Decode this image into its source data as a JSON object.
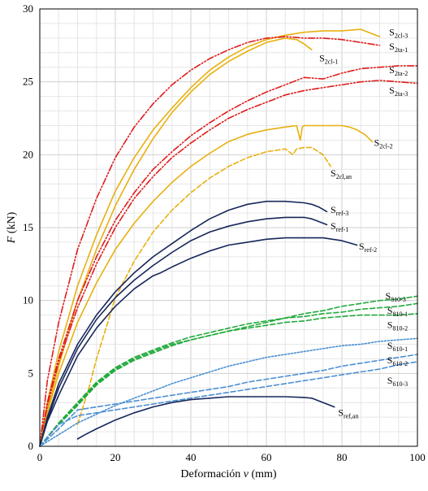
{
  "chart_data": {
    "type": "line",
    "title": "",
    "xlabel": "Deformación v (mm)",
    "xlabel_parts": [
      "Deformación ",
      "v",
      " (mm)"
    ],
    "ylabel": "F (kN)",
    "ylabel_parts": [
      "F",
      " (kN)"
    ],
    "xlim": [
      0,
      100
    ],
    "ylim": [
      0,
      30
    ],
    "xticks": [
      0,
      20,
      40,
      60,
      80,
      100
    ],
    "yticks": [
      0,
      5,
      10,
      15,
      20,
      25,
      30
    ],
    "grid": true,
    "legend": "inline labels at curve ends",
    "colors": {
      "orange": "#E8B00F",
      "red": "#E01B1B",
      "navy": "#17275A",
      "green": "#22AA3C",
      "blue": "#4C8FD2"
    },
    "series": [
      {
        "name": "S2cl-3",
        "label_main": "S",
        "label_sub": "2cl-3",
        "color": "#E8B00F",
        "dash": "solid",
        "label_at": [
          92.5,
          28.2
        ],
        "x": [
          0,
          2,
          5,
          10,
          15,
          20,
          25,
          30,
          35,
          40,
          45,
          50,
          55,
          60,
          65,
          70,
          75,
          80,
          85,
          90
        ],
        "y": [
          0,
          3,
          6.5,
          11,
          14.5,
          17.5,
          19.8,
          21.7,
          23.2,
          24.6,
          25.8,
          26.7,
          27.4,
          27.9,
          28.2,
          28.4,
          28.5,
          28.5,
          28.6,
          28.1
        ]
      },
      {
        "name": "S2cl-1",
        "label_main": "S",
        "label_sub": "2cl-1",
        "color": "#E8B00F",
        "dash": "solid",
        "label_at": [
          74,
          26.4
        ],
        "x": [
          0,
          2,
          5,
          10,
          15,
          20,
          25,
          30,
          35,
          40,
          45,
          50,
          55,
          60,
          65,
          68,
          70,
          72
        ],
        "y": [
          0,
          2.5,
          5.5,
          10,
          13.5,
          16.5,
          19,
          21.1,
          22.9,
          24.3,
          25.5,
          26.4,
          27.1,
          27.7,
          28,
          27.9,
          27.6,
          27.2
        ]
      },
      {
        "name": "S2ta-1",
        "label_main": "S",
        "label_sub": "2ta-1",
        "color": "#E01B1B",
        "dash": "dashdotdot",
        "label_at": [
          92.5,
          27.2
        ],
        "x": [
          0,
          2,
          5,
          10,
          15,
          20,
          25,
          30,
          35,
          40,
          45,
          50,
          55,
          60,
          65,
          70,
          75,
          80,
          85,
          90
        ],
        "y": [
          0,
          4.5,
          8.5,
          13.5,
          17,
          19.8,
          21.9,
          23.5,
          24.8,
          25.8,
          26.6,
          27.2,
          27.7,
          28,
          28.1,
          28,
          28,
          27.9,
          27.7,
          27.5
        ]
      },
      {
        "name": "S2ta-2",
        "label_main": "S",
        "label_sub": "2ta-2",
        "color": "#E01B1B",
        "dash": "dashdotdot",
        "label_at": [
          92.5,
          25.6
        ],
        "x": [
          0,
          2,
          5,
          10,
          15,
          20,
          25,
          30,
          35,
          40,
          45,
          50,
          55,
          60,
          65,
          70,
          75,
          80,
          85,
          90,
          95,
          100
        ],
        "y": [
          0,
          3,
          6,
          10,
          13,
          15.5,
          17.4,
          19,
          20.2,
          21.3,
          22.2,
          23,
          23.7,
          24.3,
          24.8,
          25.3,
          25.2,
          25.6,
          25.9,
          26,
          26.1,
          26.1
        ]
      },
      {
        "name": "S2ta-3",
        "label_main": "S",
        "label_sub": "2ta-3",
        "color": "#E01B1B",
        "dash": "dashdotdot",
        "label_at": [
          92.5,
          24.2
        ],
        "x": [
          0,
          2,
          5,
          10,
          15,
          20,
          25,
          30,
          35,
          40,
          45,
          50,
          55,
          60,
          65,
          70,
          75,
          80,
          85,
          90,
          95,
          100
        ],
        "y": [
          0,
          2.8,
          5.8,
          9.5,
          12.5,
          15,
          17,
          18.5,
          19.8,
          20.8,
          21.7,
          22.5,
          23.1,
          23.6,
          24.1,
          24.4,
          24.6,
          24.8,
          25,
          25.1,
          25,
          24.9
        ]
      },
      {
        "name": "S2cl-2",
        "label_main": "S",
        "label_sub": "2cl-2",
        "color": "#E8B00F",
        "dash": "solid",
        "label_at": [
          88.5,
          20.6
        ],
        "x": [
          0,
          2,
          5,
          10,
          15,
          20,
          25,
          30,
          35,
          40,
          45,
          50,
          55,
          60,
          65,
          68,
          69,
          69.5,
          70,
          75,
          80,
          82,
          84,
          86,
          88
        ],
        "y": [
          0,
          2.3,
          5,
          8.5,
          11.2,
          13.5,
          15.3,
          16.8,
          18.1,
          19.2,
          20.1,
          20.9,
          21.4,
          21.7,
          21.9,
          22,
          21,
          21.9,
          22,
          22,
          22,
          21.9,
          21.7,
          21.4,
          20.9
        ]
      },
      {
        "name": "S2cl,an",
        "label_main": "S",
        "label_sub": "2cl,an",
        "color": "#E8B00F",
        "dash": "dash",
        "label_at": [
          77,
          18.5
        ],
        "x": [
          10,
          13,
          15,
          18,
          20,
          25,
          30,
          35,
          40,
          45,
          50,
          55,
          60,
          65,
          67,
          68,
          70,
          72,
          75,
          77
        ],
        "y": [
          1.5,
          4,
          6,
          8.5,
          10.2,
          12.7,
          14.7,
          16.2,
          17.4,
          18.4,
          19.2,
          19.8,
          20.2,
          20.4,
          20,
          20.4,
          20.5,
          20.5,
          20,
          19.2
        ]
      },
      {
        "name": "Sref-3",
        "label_main": "S",
        "label_sub": "ref-3",
        "color": "#17275A",
        "dash": "solid",
        "label_at": [
          77,
          16
        ],
        "x": [
          0,
          2,
          5,
          10,
          15,
          20,
          25,
          30,
          35,
          40,
          45,
          50,
          55,
          60,
          65,
          70,
          72,
          74,
          76
        ],
        "y": [
          0,
          2,
          4.3,
          7,
          9,
          10.6,
          11.9,
          13,
          13.9,
          14.8,
          15.6,
          16.2,
          16.6,
          16.8,
          16.8,
          16.7,
          16.6,
          16.4,
          16.1
        ]
      },
      {
        "name": "Sref-1",
        "label_main": "S",
        "label_sub": "ref-1",
        "color": "#17275A",
        "dash": "solid",
        "label_at": [
          77,
          14.9
        ],
        "x": [
          0,
          2,
          5,
          10,
          15,
          20,
          25,
          30,
          35,
          40,
          45,
          50,
          55,
          60,
          65,
          70,
          72,
          74,
          76
        ],
        "y": [
          0,
          1.8,
          4,
          6.7,
          8.7,
          10.2,
          11.4,
          12.4,
          13.3,
          14.1,
          14.7,
          15.1,
          15.4,
          15.6,
          15.7,
          15.7,
          15.6,
          15.4,
          15.2
        ]
      },
      {
        "name": "Sref-2",
        "label_main": "S",
        "label_sub": "ref-2",
        "color": "#17275A",
        "dash": "solid",
        "label_at": [
          84.5,
          13.5
        ],
        "x": [
          0,
          2,
          5,
          10,
          15,
          20,
          25,
          30,
          32,
          35,
          40,
          45,
          50,
          55,
          60,
          65,
          70,
          75,
          80,
          84
        ],
        "y": [
          0,
          1.7,
          3.5,
          6.2,
          8.1,
          9.6,
          10.8,
          11.7,
          11.9,
          12.3,
          12.9,
          13.4,
          13.8,
          14,
          14.2,
          14.3,
          14.3,
          14.3,
          14.1,
          13.8
        ]
      },
      {
        "name": "S810-3",
        "label_main": "S",
        "label_sub": "810-3",
        "color": "#22AA3C",
        "dash": "dash",
        "label_at": [
          91.5,
          10.1
        ],
        "x": [
          0,
          5,
          10,
          15,
          20,
          25,
          30,
          35,
          40,
          45,
          50,
          55,
          60,
          65,
          70,
          75,
          80,
          85,
          90,
          95,
          100
        ],
        "y": [
          0,
          1.5,
          2.8,
          4.2,
          5.2,
          5.9,
          6.4,
          6.9,
          7.3,
          7.6,
          7.9,
          8.2,
          8.5,
          8.8,
          9.1,
          9.3,
          9.6,
          9.8,
          10,
          10.1,
          10.3
        ]
      },
      {
        "name": "S810-1",
        "label_main": "S",
        "label_sub": "810-1",
        "color": "#22AA3C",
        "dash": "dash",
        "label_at": [
          92,
          9.1
        ],
        "x": [
          0,
          5,
          10,
          15,
          20,
          25,
          30,
          35,
          40,
          45,
          50,
          55,
          60,
          65,
          70,
          75,
          80,
          85,
          90,
          95,
          100
        ],
        "y": [
          0,
          1.6,
          3,
          4.4,
          5.4,
          6.1,
          6.6,
          7.1,
          7.5,
          7.8,
          8.1,
          8.4,
          8.6,
          8.8,
          8.9,
          9.1,
          9.2,
          9.4,
          9.5,
          9.6,
          9.8
        ]
      },
      {
        "name": "S810-2",
        "label_main": "S",
        "label_sub": "810-2",
        "color": "#22AA3C",
        "dash": "dash",
        "label_at": [
          92,
          8.1
        ],
        "x": [
          0,
          5,
          10,
          15,
          20,
          25,
          30,
          35,
          40,
          45,
          50,
          55,
          60,
          65,
          70,
          75,
          80,
          85,
          90,
          95,
          100
        ],
        "y": [
          0,
          1.5,
          2.9,
          4.3,
          5.3,
          6,
          6.5,
          7,
          7.3,
          7.6,
          7.9,
          8.1,
          8.3,
          8.5,
          8.6,
          8.8,
          8.9,
          9,
          9,
          9,
          9.1
        ]
      },
      {
        "name": "S610-1",
        "label_main": "S",
        "label_sub": "610-1",
        "color": "#4C8FD2",
        "dash": "dot",
        "label_at": [
          92,
          6.7
        ],
        "x": [
          0,
          5,
          10,
          15,
          20,
          25,
          30,
          35,
          40,
          45,
          50,
          55,
          60,
          65,
          70,
          75,
          80,
          85,
          90,
          95,
          100
        ],
        "y": [
          0,
          0.8,
          1.6,
          2.2,
          2.8,
          3.3,
          3.8,
          4.3,
          4.7,
          5.1,
          5.5,
          5.8,
          6.1,
          6.3,
          6.5,
          6.7,
          6.9,
          7,
          7.2,
          7.3,
          7.4
        ]
      },
      {
        "name": "S610-2",
        "label_main": "S",
        "label_sub": "610-2",
        "color": "#4C8FD2",
        "dash": "dash",
        "label_at": [
          92,
          5.7
        ],
        "x": [
          0,
          5,
          10,
          15,
          20,
          25,
          30,
          35,
          40,
          45,
          50,
          55,
          60,
          65,
          70,
          75,
          80,
          85,
          90,
          95,
          100
        ],
        "y": [
          0,
          1.2,
          2.5,
          2.7,
          2.9,
          3.1,
          3.3,
          3.5,
          3.7,
          3.9,
          4.1,
          4.4,
          4.6,
          4.8,
          5,
          5.2,
          5.5,
          5.7,
          5.9,
          6.1,
          6.3
        ]
      },
      {
        "name": "S610-3",
        "label_main": "S",
        "label_sub": "610-3",
        "color": "#4C8FD2",
        "dash": "dash",
        "label_at": [
          92,
          4.3
        ],
        "x": [
          0,
          5,
          10,
          15,
          20,
          25,
          30,
          35,
          40,
          45,
          50,
          55,
          60,
          65,
          70,
          75,
          80,
          85,
          90,
          95,
          100
        ],
        "y": [
          0,
          1.5,
          2.1,
          2.3,
          2.5,
          2.7,
          2.9,
          3.1,
          3.3,
          3.5,
          3.7,
          3.9,
          4.1,
          4.3,
          4.5,
          4.7,
          4.9,
          5.1,
          5.3,
          5.6,
          5.8
        ]
      },
      {
        "name": "Sref,an",
        "label_main": "S",
        "label_sub": "ref,an",
        "color": "#17275A",
        "dash": "solid",
        "label_at": [
          79,
          2.1
        ],
        "x": [
          10,
          12,
          15,
          20,
          25,
          30,
          35,
          40,
          45,
          50,
          55,
          60,
          65,
          70,
          72,
          74,
          76,
          78
        ],
        "y": [
          0.5,
          0.8,
          1.2,
          1.8,
          2.3,
          2.7,
          3,
          3.2,
          3.3,
          3.4,
          3.4,
          3.4,
          3.4,
          3.35,
          3.3,
          3.1,
          2.9,
          2.7
        ]
      }
    ]
  }
}
